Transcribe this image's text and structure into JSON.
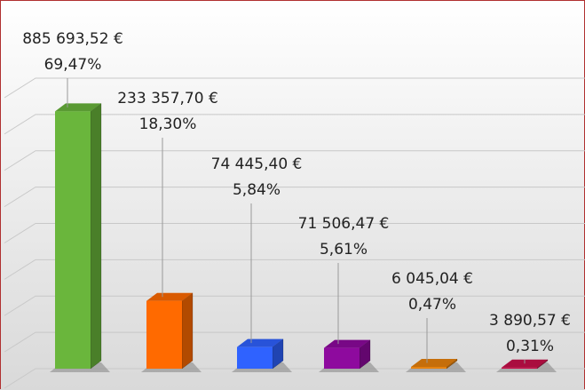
{
  "chart_data": {
    "type": "bar3d",
    "values": [
      885693.52,
      233357.7,
      74445.4,
      71506.47,
      6045.04,
      3890.57
    ],
    "value_labels": [
      "885 693,52 €",
      "233 357,70 €",
      "74 445,40 €",
      "71 506,47 €",
      "6 045,04 €",
      "3 890,57 €"
    ],
    "percent_labels": [
      "69,47%",
      "18,30%",
      "5,84%",
      "5,61%",
      "0,47%",
      "0,31%"
    ],
    "colors": [
      "#6ab63c",
      "#ff6a00",
      "#2f62ff",
      "#8e0a9e",
      "#e8820c",
      "#c8104a"
    ],
    "ylim": [
      0,
      1000000
    ],
    "yticks": [
      0,
      125000,
      250000,
      375000,
      500000,
      625000,
      750000,
      875000,
      1000000
    ],
    "grid": true
  }
}
